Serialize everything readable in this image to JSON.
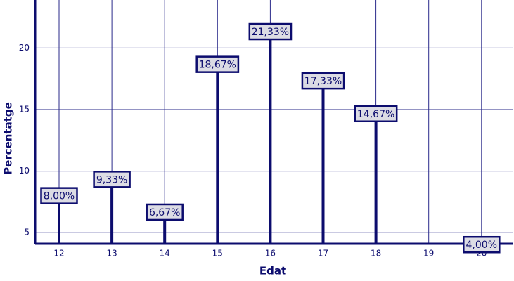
{
  "chart_data": {
    "type": "bar",
    "x_label": "Edat",
    "y_label": "Percentatge",
    "categories": [
      "12",
      "13",
      "14",
      "15",
      "16",
      "17",
      "18",
      "19",
      "20"
    ],
    "values": [
      8.0,
      9.33,
      6.67,
      18.67,
      21.33,
      17.33,
      14.67,
      null,
      4.0
    ],
    "value_labels": [
      "8,00%",
      "9,33%",
      "6,67%",
      "18,67%",
      "21,33%",
      "17,33%",
      "14,67%",
      null,
      "4,00%"
    ],
    "color": "#0c0c6e",
    "ylim": [
      4.1,
      23.9
    ],
    "yticks": [
      5,
      10,
      15,
      20
    ],
    "grid": true
  }
}
